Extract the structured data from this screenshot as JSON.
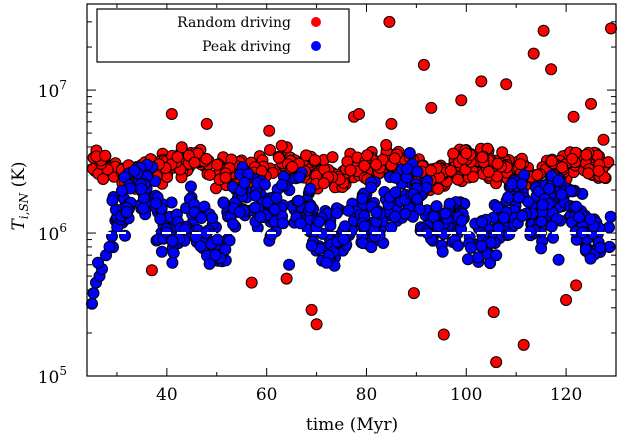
{
  "chart_data": {
    "type": "scatter",
    "title": "",
    "xlabel": "time (Myr)",
    "ylabel": "T_{i,SN} (K)",
    "ylabel_main": "T",
    "ylabel_sub": "i,SN",
    "ylabel_unit": " (K)",
    "xlim": [
      24,
      130
    ],
    "ylim": [
      100000,
      40000000
    ],
    "yscale": "log",
    "xticks": [
      40,
      60,
      80,
      100,
      120
    ],
    "xtick_labels": [
      "40",
      "60",
      "80",
      "100",
      "120"
    ],
    "yticks": [
      100000,
      1000000,
      10000000
    ],
    "ytick_bases": [
      "10",
      "10",
      "10"
    ],
    "ytick_exps": [
      "5",
      "6",
      "7"
    ],
    "grid": false,
    "legend_position": "top-left",
    "reference_line": {
      "y": 1000000,
      "style": "dashed",
      "color": "#ffffff"
    },
    "series": [
      {
        "name": "Random driving",
        "color": "#ff0000",
        "outliers": [
          [
            84.6,
            30000000
          ],
          [
            91.5,
            15000000
          ],
          [
            103.0,
            11500000
          ],
          [
            115.5,
            26000000
          ],
          [
            117.0,
            14000000
          ],
          [
            113.5,
            18000000
          ],
          [
            129.0,
            27000000
          ],
          [
            108.0,
            11000000
          ],
          [
            125.0,
            8000000
          ],
          [
            41.0,
            6800000
          ],
          [
            48.0,
            5800000
          ],
          [
            57.0,
            450000
          ],
          [
            64.0,
            480000
          ],
          [
            69.0,
            290000
          ],
          [
            70.0,
            230000
          ],
          [
            37.0,
            550000
          ],
          [
            89.5,
            380000
          ],
          [
            95.5,
            195000
          ],
          [
            105.5,
            280000
          ],
          [
            106.0,
            125000
          ],
          [
            111.5,
            165000
          ],
          [
            120.0,
            340000
          ],
          [
            122.0,
            430000
          ],
          [
            99.0,
            8500000
          ],
          [
            93.0,
            7500000
          ],
          [
            77.5,
            6500000
          ],
          [
            85.0,
            5800000
          ],
          [
            60.5,
            5200000
          ],
          [
            121.5,
            6500000
          ],
          [
            127.5,
            4500000
          ],
          [
            78.5,
            6800000
          ]
        ],
        "band": {
          "x_start": 25.0,
          "x_end": 129.0,
          "low": 2000000,
          "high": 4000000,
          "count": 620
        }
      },
      {
        "name": "Peak driving",
        "color": "#0000ff",
        "outliers": [
          [
            25.0,
            320000
          ],
          [
            25.3,
            380000
          ],
          [
            25.8,
            450000
          ],
          [
            26.5,
            500000
          ],
          [
            27.0,
            560000
          ],
          [
            26.2,
            620000
          ],
          [
            27.8,
            700000
          ],
          [
            28.5,
            800000
          ],
          [
            29.0,
            950000
          ],
          [
            106.0,
            700000
          ],
          [
            64.5,
            600000
          ],
          [
            72.0,
            620000
          ],
          [
            118.5,
            650000
          ]
        ],
        "band": {
          "x_start": 29.0,
          "x_end": 129.0,
          "low": 600000,
          "high": 2800000,
          "count": 680
        }
      }
    ]
  }
}
